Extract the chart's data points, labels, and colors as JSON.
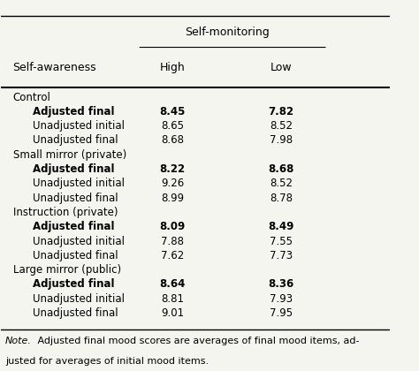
{
  "header_col": "Self-awareness",
  "group_header": "Self-monitoring",
  "col_headers": [
    "High",
    "Low"
  ],
  "rows": [
    {
      "label": "Control",
      "indent": false,
      "high": null,
      "low": null,
      "bold": false
    },
    {
      "label": "Adjusted final",
      "indent": true,
      "high": "8.45",
      "low": "7.82",
      "bold": true
    },
    {
      "label": "Unadjusted initial",
      "indent": true,
      "high": "8.65",
      "low": "8.52",
      "bold": false
    },
    {
      "label": "Unadjusted final",
      "indent": true,
      "high": "8.68",
      "low": "7.98",
      "bold": false
    },
    {
      "label": "Small mirror (private)",
      "indent": false,
      "high": null,
      "low": null,
      "bold": false
    },
    {
      "label": "Adjusted final",
      "indent": true,
      "high": "8.22",
      "low": "8.68",
      "bold": true
    },
    {
      "label": "Unadjusted initial",
      "indent": true,
      "high": "9.26",
      "low": "8.52",
      "bold": false
    },
    {
      "label": "Unadjusted final",
      "indent": true,
      "high": "8.99",
      "low": "8.78",
      "bold": false
    },
    {
      "label": "Instruction (private)",
      "indent": false,
      "high": null,
      "low": null,
      "bold": false
    },
    {
      "label": "Adjusted final",
      "indent": true,
      "high": "8.09",
      "low": "8.49",
      "bold": true
    },
    {
      "label": "Unadjusted initial",
      "indent": true,
      "high": "7.88",
      "low": "7.55",
      "bold": false
    },
    {
      "label": "Unadjusted final",
      "indent": true,
      "high": "7.62",
      "low": "7.73",
      "bold": false
    },
    {
      "label": "Large mirror (public)",
      "indent": false,
      "high": null,
      "low": null,
      "bold": false
    },
    {
      "label": "Adjusted final",
      "indent": true,
      "high": "8.64",
      "low": "8.36",
      "bold": true
    },
    {
      "label": "Unadjusted initial",
      "indent": true,
      "high": "8.81",
      "low": "7.93",
      "bold": false
    },
    {
      "label": "Unadjusted final",
      "indent": true,
      "high": "9.01",
      "low": "7.95",
      "bold": false
    }
  ],
  "note": "Note. Adjusted final mood scores are averages of final mood items, ad-\njusted for averages of initial mood items.",
  "bg_color": "#f5f5f0",
  "font_size": 8.5,
  "title_font_size": 9.0
}
